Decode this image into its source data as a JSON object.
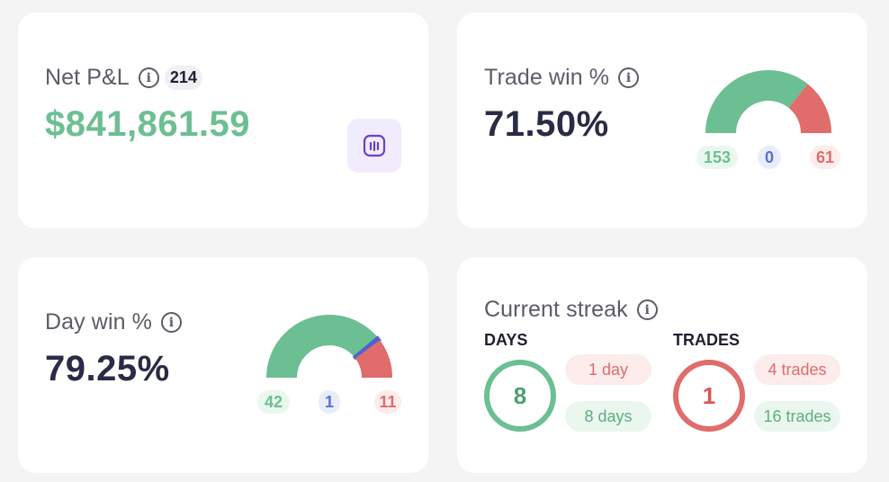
{
  "colors": {
    "green": "#6cbf92",
    "red": "#e06c6c",
    "blue": "#4a63d0",
    "accent_purple": "#6b3fd4"
  },
  "net_pnl": {
    "title": "Net P&L",
    "count": "214",
    "value": "$841,861.59",
    "chart_icon": "bar-chart-icon"
  },
  "trade_win": {
    "title": "Trade win %",
    "value": "71.50%",
    "wins": 153,
    "breakeven": 0,
    "losses": 61,
    "wins_label": "153",
    "breakeven_label": "0",
    "losses_label": "61"
  },
  "day_win": {
    "title": "Day win %",
    "value": "79.25%",
    "wins": 42,
    "breakeven": 1,
    "losses": 11,
    "wins_label": "42",
    "breakeven_label": "1",
    "losses_label": "11"
  },
  "streak": {
    "title": "Current streak",
    "days": {
      "label": "DAYS",
      "current": "8",
      "losing": "1 day",
      "winning": "8 days"
    },
    "trades": {
      "label": "TRADES",
      "current": "1",
      "losing": "4 trades",
      "winning": "16 trades"
    }
  }
}
